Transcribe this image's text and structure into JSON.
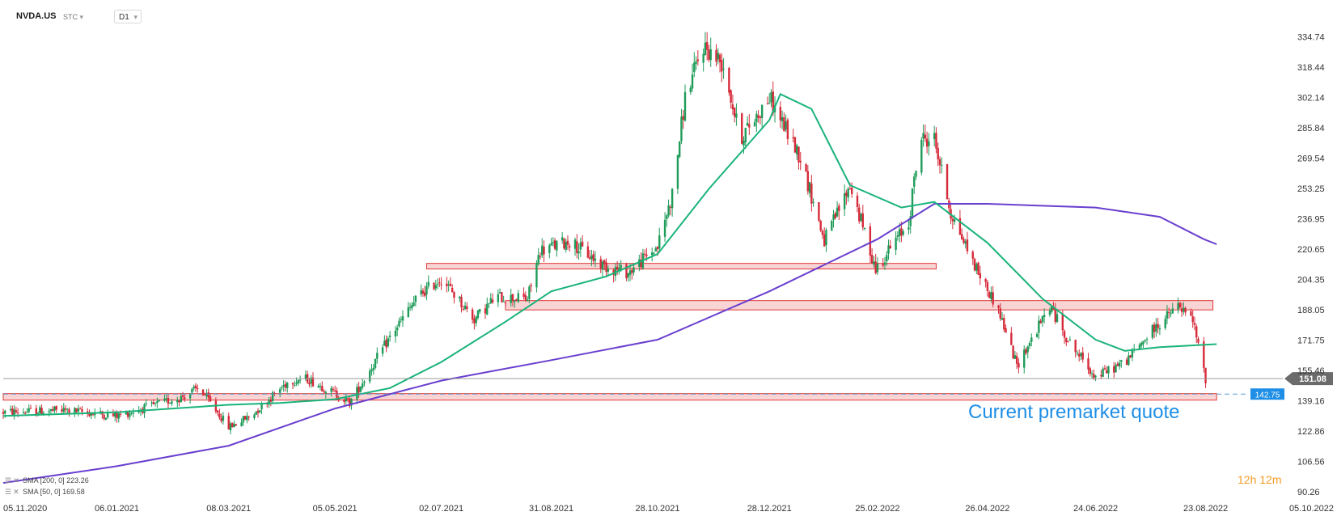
{
  "header": {
    "symbol": "NVDA.US",
    "quote_type": "STC",
    "timeframe": "D1"
  },
  "indicators": [
    {
      "label": "SMA [200, 0] 223.26",
      "color": "#6a3fcf"
    },
    {
      "label": "SMA [50, 0] 169.58",
      "color": "#19b37a"
    }
  ],
  "timer": {
    "first": "12h",
    "second": "12m"
  },
  "annotation": {
    "text": "Current premarket quote"
  },
  "colors": {
    "up": "#1f9c5a",
    "down": "#d62b3a",
    "zone_fill": "#f8d4d4",
    "zone_border": "#e03a3a",
    "accent": "#1e8ee6"
  },
  "chart_data": {
    "type": "candlestick",
    "y_ticks": [
      "334.74",
      "318.44",
      "302.14",
      "285.84",
      "269.54",
      "253.25",
      "236.95",
      "220.65",
      "204.35",
      "188.05",
      "171.75",
      "155.46",
      "139.16",
      "122.86",
      "106.56",
      "90.26"
    ],
    "x_ticks": [
      "05.11.2020",
      "06.01.2021",
      "08.03.2021",
      "05.05.2021",
      "02.07.2021",
      "31.08.2021",
      "28.10.2021",
      "28.12.2021",
      "25.02.2022",
      "26.04.2022",
      "24.06.2022",
      "23.08.2022",
      "05.10.2022"
    ],
    "ylim": [
      90.26,
      345
    ],
    "xlim": [
      "2020-11-05",
      "2022-10-05"
    ],
    "last_price": "151.08",
    "premarket_price": "142.75",
    "support_resistance_zones": [
      {
        "from": "2021-06-24",
        "to": "2022-03-29",
        "low": 210,
        "high": 213
      },
      {
        "from": "2021-08-06",
        "to": "2022-08-27",
        "low": 188,
        "high": 193
      },
      {
        "from": "2020-11-05",
        "to": "2022-08-29",
        "low": 139.5,
        "high": 143
      }
    ],
    "ohlc_anchors": [
      [
        "2020-11-05",
        133
      ],
      [
        "2020-12-10",
        134
      ],
      [
        "2021-01-06",
        131
      ],
      [
        "2021-02-10",
        141
      ],
      [
        "2021-02-20",
        146
      ],
      [
        "2021-03-08",
        125
      ],
      [
        "2021-03-20",
        131
      ],
      [
        "2021-04-10",
        150
      ],
      [
        "2021-04-20",
        151
      ],
      [
        "2021-05-05",
        143
      ],
      [
        "2021-05-13",
        138
      ],
      [
        "2021-06-05",
        175
      ],
      [
        "2021-06-20",
        196
      ],
      [
        "2021-07-02",
        205
      ],
      [
        "2021-07-20",
        183
      ],
      [
        "2021-08-01",
        195
      ],
      [
        "2021-08-18",
        194
      ],
      [
        "2021-08-25",
        220
      ],
      [
        "2021-09-10",
        225
      ],
      [
        "2021-09-28",
        212
      ],
      [
        "2021-10-12",
        208
      ],
      [
        "2021-10-28",
        222
      ],
      [
        "2021-11-05",
        250
      ],
      [
        "2021-11-12",
        302
      ],
      [
        "2021-11-22",
        330
      ],
      [
        "2021-12-03",
        320
      ],
      [
        "2021-12-12",
        280
      ],
      [
        "2021-12-28",
        302
      ],
      [
        "2022-01-14",
        270
      ],
      [
        "2022-01-27",
        225
      ],
      [
        "2022-02-10",
        255
      ],
      [
        "2022-02-24",
        210
      ],
      [
        "2022-03-14",
        235
      ],
      [
        "2022-03-20",
        280
      ],
      [
        "2022-03-28",
        280
      ],
      [
        "2022-04-06",
        240
      ],
      [
        "2022-04-20",
        210
      ],
      [
        "2022-05-02",
        188
      ],
      [
        "2022-05-12",
        158
      ],
      [
        "2022-05-30",
        190
      ],
      [
        "2022-06-10",
        170
      ],
      [
        "2022-06-24",
        152
      ],
      [
        "2022-07-10",
        160
      ],
      [
        "2022-07-25",
        177
      ],
      [
        "2022-08-08",
        190
      ],
      [
        "2022-08-16",
        182
      ],
      [
        "2022-08-23",
        151
      ]
    ],
    "sma_200": [
      [
        "2020-11-05",
        95
      ],
      [
        "2021-01-06",
        104
      ],
      [
        "2021-03-08",
        115
      ],
      [
        "2021-05-05",
        135
      ],
      [
        "2021-07-02",
        150
      ],
      [
        "2021-08-31",
        161
      ],
      [
        "2021-10-28",
        172
      ],
      [
        "2021-12-28",
        198
      ],
      [
        "2022-02-25",
        226
      ],
      [
        "2022-03-28",
        245
      ],
      [
        "2022-04-26",
        245
      ],
      [
        "2022-06-24",
        243
      ],
      [
        "2022-07-29",
        238
      ],
      [
        "2022-08-22",
        226
      ],
      [
        "2022-08-29",
        223.26
      ]
    ],
    "sma_50": [
      [
        "2020-11-05",
        131
      ],
      [
        "2021-01-06",
        133
      ],
      [
        "2021-03-08",
        137
      ],
      [
        "2021-04-05",
        138
      ],
      [
        "2021-05-05",
        140
      ],
      [
        "2021-06-04",
        146
      ],
      [
        "2021-07-02",
        160
      ],
      [
        "2021-08-05",
        181
      ],
      [
        "2021-08-31",
        198
      ],
      [
        "2021-09-30",
        206
      ],
      [
        "2021-10-28",
        218
      ],
      [
        "2021-11-25",
        253
      ],
      [
        "2021-12-28",
        290
      ],
      [
        "2022-01-03",
        304
      ],
      [
        "2022-01-20",
        296
      ],
      [
        "2022-02-10",
        255
      ],
      [
        "2022-03-10",
        243
      ],
      [
        "2022-03-28",
        246
      ],
      [
        "2022-04-26",
        224
      ],
      [
        "2022-05-26",
        194
      ],
      [
        "2022-06-24",
        172
      ],
      [
        "2022-07-10",
        166
      ],
      [
        "2022-07-29",
        168
      ],
      [
        "2022-08-29",
        169.58
      ]
    ]
  }
}
